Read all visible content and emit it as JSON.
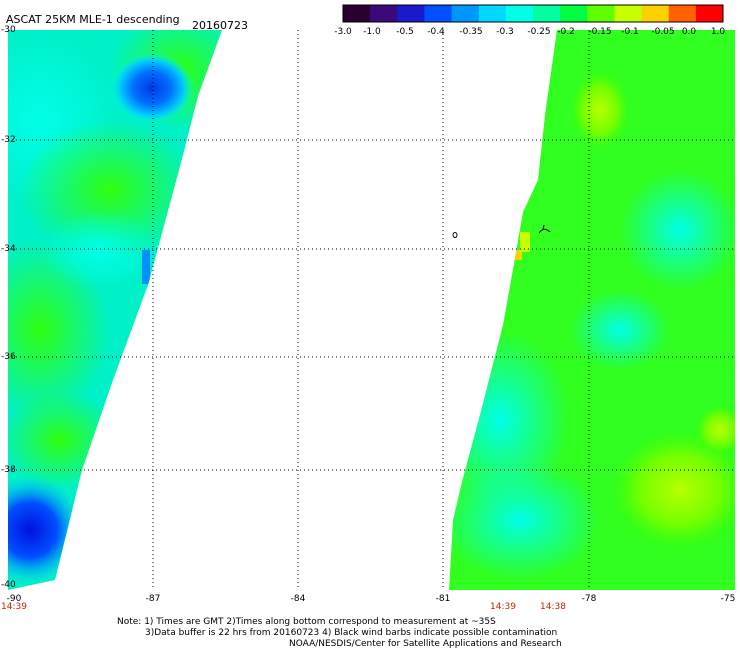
{
  "header": {
    "title": "ASCAT 25KM MLE-1 descending",
    "date": "20160723"
  },
  "colorbar": {
    "ticks": [
      "-3.0",
      "-1.0",
      "-0.5",
      "-0.4",
      "-0.35",
      "-0.3",
      "-0.25",
      "-0.2",
      "-0.15",
      "-0.1",
      "-0.05",
      "0.0",
      "1.0"
    ],
    "colors": [
      "#2a0030",
      "#3b0a7a",
      "#1a1acc",
      "#0050ff",
      "#0096ff",
      "#00d8ff",
      "#00ffe8",
      "#00ffa0",
      "#00ff40",
      "#60ff00",
      "#c8ff00",
      "#ffd000",
      "#ff6000",
      "#ff0000"
    ]
  },
  "axes": {
    "lat_labels": [
      "-30",
      "-32",
      "-34",
      "-36",
      "-38",
      "-40"
    ],
    "lon_labels": [
      "-90",
      "-87",
      "-84",
      "-81",
      "-78",
      "-75"
    ]
  },
  "times": {
    "left": "14:39",
    "right_a": "14:39",
    "right_b": "14:38"
  },
  "notes": {
    "line1": "Note: 1) Times are GMT 2)Times along bottom correspond to measurement at ~35S",
    "line2": "3)Data buffer is 22 hrs from 20160723 4) Black wind barbs indicate possible contamination",
    "line3": "NOAA/NESDIS/Center for Satellite Applications and Research"
  }
}
